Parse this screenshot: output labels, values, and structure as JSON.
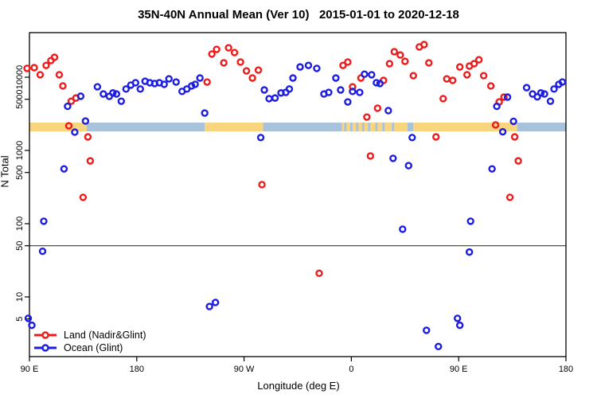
{
  "title": "35N-40N Annual Mean (Ver 10)   2015-01-01 to 2020-12-18",
  "chart_data": {
    "type": "scatter",
    "title": "35N-40N Annual Mean (Ver 10)   2015-01-01 to 2020-12-18",
    "xlabel": "Longitude (deg E)",
    "ylabel": "N Total",
    "y_scale": "log",
    "x_range_deg_east_continuous": [
      90,
      540
    ],
    "x_ticks": [
      {
        "value": 90,
        "label": "90 E"
      },
      {
        "value": 180,
        "label": "180"
      },
      {
        "value": 270,
        "label": "90 W"
      },
      {
        "value": 360,
        "label": "0"
      },
      {
        "value": 450,
        "label": "90 E"
      },
      {
        "value": 540,
        "label": "180"
      }
    ],
    "y_ticks": [
      5,
      10,
      50,
      100,
      500,
      1000,
      5000,
      10000
    ],
    "threshold_line_n": 50,
    "surface_band": {
      "description": "land/ocean surface strip",
      "n_top": 2400,
      "n_bottom": 1820,
      "land_color": "#f8d57e",
      "ocean_color": "#a9c2dc",
      "segments": [
        {
          "from": 90,
          "to": 138,
          "type": "land"
        },
        {
          "from": 138,
          "to": 237,
          "type": "ocean"
        },
        {
          "from": 237,
          "to": 286,
          "type": "land"
        },
        {
          "from": 286,
          "to": 352,
          "type": "ocean"
        },
        {
          "from": 352,
          "to": 354,
          "type": "land"
        },
        {
          "from": 354,
          "to": 356,
          "type": "ocean"
        },
        {
          "from": 356,
          "to": 359,
          "type": "land"
        },
        {
          "from": 359,
          "to": 361,
          "type": "ocean"
        },
        {
          "from": 361,
          "to": 364,
          "type": "land"
        },
        {
          "from": 364,
          "to": 366,
          "type": "ocean"
        },
        {
          "from": 366,
          "to": 369,
          "type": "land"
        },
        {
          "from": 369,
          "to": 371,
          "type": "ocean"
        },
        {
          "from": 371,
          "to": 374,
          "type": "land"
        },
        {
          "from": 374,
          "to": 376,
          "type": "ocean"
        },
        {
          "from": 376,
          "to": 380,
          "type": "land"
        },
        {
          "from": 380,
          "to": 382,
          "type": "ocean"
        },
        {
          "from": 382,
          "to": 386,
          "type": "land"
        },
        {
          "from": 386,
          "to": 388,
          "type": "ocean"
        },
        {
          "from": 388,
          "to": 394,
          "type": "land"
        },
        {
          "from": 394,
          "to": 396,
          "type": "ocean"
        },
        {
          "from": 396,
          "to": 407,
          "type": "land"
        },
        {
          "from": 407,
          "to": 412,
          "type": "ocean"
        },
        {
          "from": 412,
          "to": 499,
          "type": "land"
        },
        {
          "from": 499,
          "to": 540,
          "type": "ocean"
        }
      ]
    },
    "series": [
      {
        "name": "Land (Nadir&Glint)",
        "color": "#ed1c1c",
        "points": [
          {
            "lon": 88,
            "n": 13200
          },
          {
            "lon": 94,
            "n": 13500
          },
          {
            "lon": 99,
            "n": 10800
          },
          {
            "lon": 104,
            "n": 14500
          },
          {
            "lon": 108,
            "n": 16900
          },
          {
            "lon": 111,
            "n": 18700
          },
          {
            "lon": 115,
            "n": 10800
          },
          {
            "lon": 118,
            "n": 7600
          },
          {
            "lon": 125,
            "n": 4700
          },
          {
            "lon": 129,
            "n": 5200
          },
          {
            "lon": 123,
            "n": 2170
          },
          {
            "lon": 139,
            "n": 1530
          },
          {
            "lon": 141,
            "n": 720
          },
          {
            "lon": 135,
            "n": 229
          },
          {
            "lon": 239,
            "n": 8600
          },
          {
            "lon": 243,
            "n": 20700
          },
          {
            "lon": 247,
            "n": 24000
          },
          {
            "lon": 253,
            "n": 15700
          },
          {
            "lon": 257,
            "n": 25200
          },
          {
            "lon": 262,
            "n": 21700
          },
          {
            "lon": 267,
            "n": 16100
          },
          {
            "lon": 272,
            "n": 12200
          },
          {
            "lon": 277,
            "n": 9750
          },
          {
            "lon": 282,
            "n": 12500
          },
          {
            "lon": 285,
            "n": 341
          },
          {
            "lon": 333,
            "n": 21
          },
          {
            "lon": 353,
            "n": 14500
          },
          {
            "lon": 357,
            "n": 16100
          },
          {
            "lon": 361,
            "n": 7400
          },
          {
            "lon": 368,
            "n": 9750
          },
          {
            "lon": 373,
            "n": 2860
          },
          {
            "lon": 376,
            "n": 840
          },
          {
            "lon": 382,
            "n": 3770
          },
          {
            "lon": 387,
            "n": 9050
          },
          {
            "lon": 392,
            "n": 15300
          },
          {
            "lon": 396,
            "n": 22300
          },
          {
            "lon": 401,
            "n": 20100
          },
          {
            "lon": 405,
            "n": 16500
          },
          {
            "lon": 412,
            "n": 10500
          },
          {
            "lon": 417,
            "n": 25900
          },
          {
            "lon": 421,
            "n": 27900
          },
          {
            "lon": 425,
            "n": 15700
          },
          {
            "lon": 431,
            "n": 1530
          },
          {
            "lon": 437,
            "n": 5100
          },
          {
            "lon": 440,
            "n": 9500
          },
          {
            "lon": 445,
            "n": 9050
          },
          {
            "lon": 451,
            "n": 13800
          },
          {
            "lon": 457,
            "n": 10800
          },
          {
            "lon": 459,
            "n": 14200
          },
          {
            "lon": 463,
            "n": 15300
          },
          {
            "lon": 467,
            "n": 17300
          },
          {
            "lon": 471,
            "n": 10500
          },
          {
            "lon": 477,
            "n": 7600
          },
          {
            "lon": 481,
            "n": 2230
          },
          {
            "lon": 484,
            "n": 4600
          },
          {
            "lon": 488,
            "n": 5350
          },
          {
            "lon": 493,
            "n": 229
          },
          {
            "lon": 497,
            "n": 1530
          },
          {
            "lon": 500,
            "n": 720
          }
        ]
      },
      {
        "name": "Ocean (Glint)",
        "color": "#1d1de0",
        "points": [
          {
            "lon": 122,
            "n": 4000
          },
          {
            "lon": 133,
            "n": 5500
          },
          {
            "lon": 137,
            "n": 2520
          },
          {
            "lon": 128,
            "n": 1780
          },
          {
            "lon": 119,
            "n": 560
          },
          {
            "lon": 147,
            "n": 7400
          },
          {
            "lon": 152,
            "n": 5900
          },
          {
            "lon": 157,
            "n": 5480
          },
          {
            "lon": 160,
            "n": 6100
          },
          {
            "lon": 163,
            "n": 5900
          },
          {
            "lon": 167,
            "n": 4700
          },
          {
            "lon": 171,
            "n": 6900
          },
          {
            "lon": 175,
            "n": 7800
          },
          {
            "lon": 179,
            "n": 8400
          },
          {
            "lon": 183,
            "n": 6900
          },
          {
            "lon": 187,
            "n": 8800
          },
          {
            "lon": 191,
            "n": 8400
          },
          {
            "lon": 195,
            "n": 8200
          },
          {
            "lon": 199,
            "n": 8400
          },
          {
            "lon": 203,
            "n": 8000
          },
          {
            "lon": 207,
            "n": 9500
          },
          {
            "lon": 213,
            "n": 8600
          },
          {
            "lon": 218,
            "n": 6400
          },
          {
            "lon": 222,
            "n": 6900
          },
          {
            "lon": 226,
            "n": 7600
          },
          {
            "lon": 229,
            "n": 8000
          },
          {
            "lon": 233,
            "n": 9750
          },
          {
            "lon": 237,
            "n": 3240
          },
          {
            "lon": 284,
            "n": 1500
          },
          {
            "lon": 287,
            "n": 6700
          },
          {
            "lon": 291,
            "n": 5100
          },
          {
            "lon": 296,
            "n": 5200
          },
          {
            "lon": 301,
            "n": 6100
          },
          {
            "lon": 305,
            "n": 6200
          },
          {
            "lon": 308,
            "n": 6900
          },
          {
            "lon": 311,
            "n": 9750
          },
          {
            "lon": 317,
            "n": 13800
          },
          {
            "lon": 324,
            "n": 14500
          },
          {
            "lon": 331,
            "n": 13200
          },
          {
            "lon": 337,
            "n": 5900
          },
          {
            "lon": 341,
            "n": 6200
          },
          {
            "lon": 347,
            "n": 9750
          },
          {
            "lon": 351,
            "n": 6700
          },
          {
            "lon": 357,
            "n": 4600
          },
          {
            "lon": 361,
            "n": 6400
          },
          {
            "lon": 367,
            "n": 6200
          },
          {
            "lon": 371,
            "n": 11000
          },
          {
            "lon": 377,
            "n": 10800
          },
          {
            "lon": 381,
            "n": 8400
          },
          {
            "lon": 384,
            "n": 8200
          },
          {
            "lon": 391,
            "n": 3500
          },
          {
            "lon": 395,
            "n": 780
          },
          {
            "lon": 403,
            "n": 84
          },
          {
            "lon": 408,
            "n": 620
          },
          {
            "lon": 411,
            "n": 1500
          },
          {
            "lon": 423,
            "n": 3.5
          },
          {
            "lon": 433,
            "n": 2.1
          },
          {
            "lon": 241,
            "n": 7.4
          },
          {
            "lon": 246,
            "n": 8.4
          },
          {
            "lon": 449,
            "n": 5.1
          },
          {
            "lon": 451,
            "n": 4.1
          },
          {
            "lon": 459,
            "n": 41
          },
          {
            "lon": 460,
            "n": 108
          },
          {
            "lon": 478,
            "n": 560
          },
          {
            "lon": 482,
            "n": 4000
          },
          {
            "lon": 487,
            "n": 1800
          },
          {
            "lon": 491,
            "n": 5350
          },
          {
            "lon": 496,
            "n": 2500
          },
          {
            "lon": 507,
            "n": 7200
          },
          {
            "lon": 512,
            "n": 5900
          },
          {
            "lon": 516,
            "n": 5400
          },
          {
            "lon": 519,
            "n": 6100
          },
          {
            "lon": 522,
            "n": 5900
          },
          {
            "lon": 527,
            "n": 4700
          },
          {
            "lon": 530,
            "n": 6900
          },
          {
            "lon": 534,
            "n": 8000
          },
          {
            "lon": 537,
            "n": 8600
          },
          {
            "lon": 101,
            "n": 42
          },
          {
            "lon": 102,
            "n": 108
          },
          {
            "lon": 89,
            "n": 5.1
          },
          {
            "lon": 92,
            "n": 4.1
          }
        ]
      }
    ],
    "legend": {
      "position": "bottom-left",
      "entries": [
        "Land (Nadir&Glint)",
        "Ocean (Glint)"
      ]
    }
  }
}
